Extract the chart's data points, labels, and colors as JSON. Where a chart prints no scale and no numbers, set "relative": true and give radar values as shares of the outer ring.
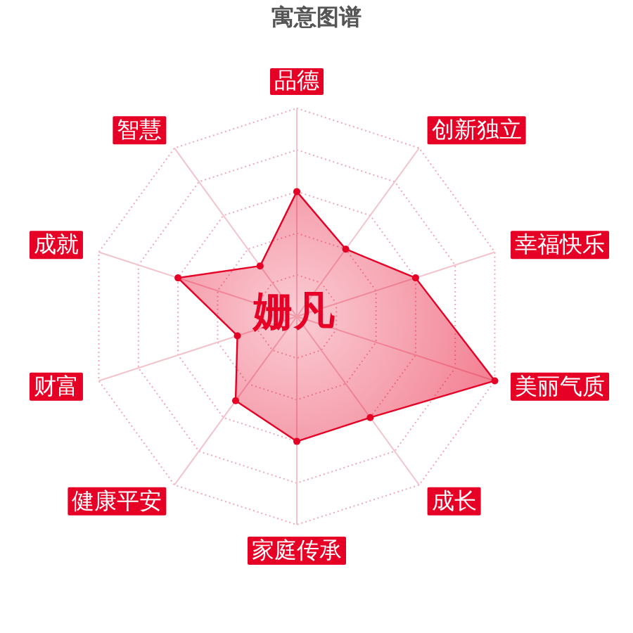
{
  "chart_data": {
    "type": "radar",
    "title": "寓意图谱",
    "categories": [
      "品德",
      "创新独立",
      "幸福快乐",
      "美丽气质",
      "成长",
      "家庭传承",
      "健康平安",
      "财富",
      "成就",
      "智慧"
    ],
    "relative": true,
    "grid": true,
    "marker": "circle",
    "series": [
      {
        "color": "#e60026",
        "values": [
          0.6,
          0.4,
          0.6,
          1,
          0.6,
          0.6,
          0.5,
          0.3,
          0.6,
          0.3
        ]
      }
    ],
    "annotations": [
      "姗凡"
    ]
  }
}
